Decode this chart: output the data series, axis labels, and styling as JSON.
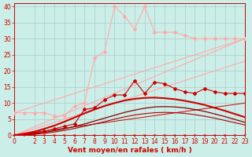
{
  "background_color": "#cceee8",
  "grid_color": "#aacccc",
  "xlabel": "Vent moyen/en rafales ( km/h )",
  "xlabel_color": "#cc0000",
  "tick_color": "#cc0000",
  "xlim": [
    0,
    23
  ],
  "ylim": [
    0,
    41
  ],
  "yticks": [
    0,
    5,
    10,
    15,
    20,
    25,
    30,
    35,
    40
  ],
  "xticks": [
    0,
    2,
    3,
    4,
    5,
    6,
    7,
    8,
    9,
    10,
    11,
    12,
    13,
    14,
    15,
    16,
    17,
    18,
    19,
    20,
    21,
    22,
    23
  ],
  "ref_line1_x": [
    0,
    23
  ],
  "ref_line1_y": [
    0,
    23
  ],
  "ref_line1_color": "#ffaaaa",
  "ref_line1_lw": 0.8,
  "ref_line2_x": [
    0,
    23
  ],
  "ref_line2_y": [
    0,
    30
  ],
  "ref_line2_color": "#ffaaaa",
  "ref_line2_lw": 0.8,
  "ref_line3_x": [
    0,
    23
  ],
  "ref_line3_y": [
    7,
    30
  ],
  "ref_line3_color": "#ffaaaa",
  "ref_line3_lw": 0.8,
  "ref_line4_x": [
    0,
    23
  ],
  "ref_line4_y": [
    0,
    10
  ],
  "ref_line4_color": "#cc0000",
  "ref_line4_lw": 0.7,
  "gust_x": [
    0,
    1,
    2,
    3,
    4,
    5,
    6,
    7,
    8,
    9,
    10,
    11,
    12,
    13,
    14,
    15,
    16,
    17,
    18,
    19,
    20,
    21,
    22,
    23
  ],
  "gust_y": [
    7,
    7,
    7,
    7,
    6,
    6,
    9,
    10,
    24,
    26,
    40,
    37,
    33,
    40,
    32,
    32,
    32,
    31,
    30,
    30,
    30,
    30,
    30,
    30
  ],
  "gust_color": "#ffaaaa",
  "gust_marker": "D",
  "gust_ms": 2.0,
  "gust_lw": 0.8,
  "wind_avg_x": [
    0,
    1,
    2,
    3,
    4,
    5,
    6,
    7,
    8,
    9,
    10,
    11,
    12,
    13,
    14,
    15,
    16,
    17,
    18,
    19,
    20,
    21,
    22,
    23
  ],
  "wind_avg_y": [
    0,
    0.3,
    0.8,
    1.2,
    2.0,
    2.8,
    3.5,
    8.0,
    8.5,
    11.0,
    12.5,
    12.5,
    17.0,
    13.0,
    16.5,
    16.0,
    14.5,
    13.5,
    13.0,
    14.5,
    13.5,
    13.0,
    13.0,
    13.0
  ],
  "wind_avg_color": "#cc0000",
  "wind_avg_marker": "D",
  "wind_avg_ms": 2.0,
  "wind_avg_lw": 0.8,
  "bell_x": [
    0,
    1,
    2,
    3,
    4,
    5,
    6,
    7,
    8,
    9,
    10,
    11,
    12,
    13,
    14,
    15,
    16,
    17,
    18,
    19,
    20,
    21,
    22,
    23
  ],
  "bell_y": [
    0,
    0.5,
    1.1,
    2.0,
    3.0,
    4.2,
    5.5,
    6.8,
    8.0,
    9.1,
    10.0,
    10.8,
    11.3,
    11.6,
    11.7,
    11.5,
    11.2,
    10.7,
    10.1,
    9.4,
    8.5,
    7.6,
    6.6,
    5.6
  ],
  "bell_color": "#cc0000",
  "bell_lw": 1.5,
  "curve2_x": [
    0,
    1,
    2,
    3,
    4,
    5,
    6,
    7,
    8,
    9,
    10,
    11,
    12,
    13,
    14,
    15,
    16,
    17,
    18,
    19,
    20,
    21,
    22,
    23
  ],
  "curve2_y": [
    0,
    0.2,
    0.5,
    0.9,
    1.4,
    2.0,
    2.7,
    3.5,
    4.4,
    5.3,
    6.2,
    7.1,
    7.8,
    8.4,
    8.8,
    8.9,
    8.8,
    8.5,
    8.0,
    7.4,
    6.6,
    5.8,
    4.9,
    4.0
  ],
  "curve2_color": "#880000",
  "curve2_lw": 0.9,
  "curve3_x": [
    0,
    1,
    2,
    3,
    4,
    5,
    6,
    7,
    8,
    9,
    10,
    11,
    12,
    13,
    14,
    15,
    16,
    17,
    18,
    19,
    20,
    21,
    22,
    23
  ],
  "curve3_y": [
    0,
    0.1,
    0.3,
    0.6,
    1.0,
    1.5,
    2.1,
    2.8,
    3.5,
    4.2,
    5.0,
    5.7,
    6.3,
    6.7,
    7.0,
    7.1,
    7.0,
    6.8,
    6.4,
    5.9,
    5.3,
    4.6,
    3.9,
    3.2
  ],
  "curve3_color": "#aa0000",
  "curve3_lw": 0.8,
  "figsize": [
    3.2,
    2.0
  ],
  "dpi": 100
}
